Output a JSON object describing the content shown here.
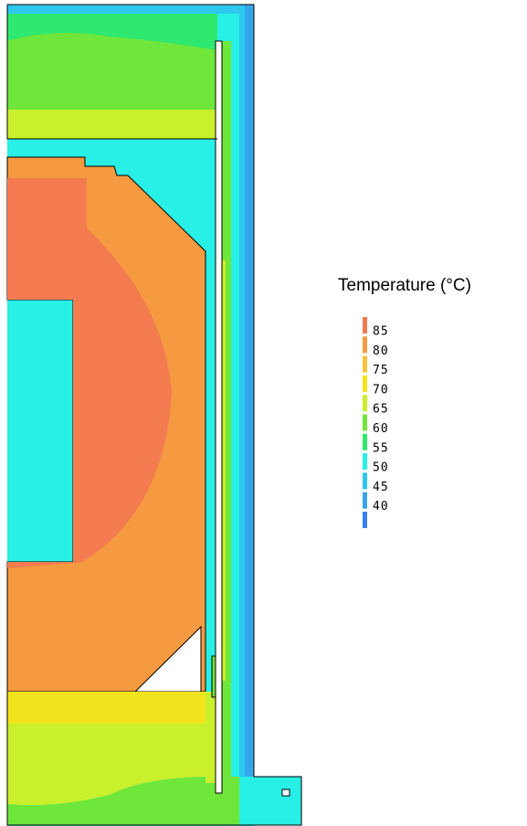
{
  "legend": {
    "title": "Temperature (°C)",
    "levels": [
      85,
      80,
      75,
      70,
      65,
      60,
      55,
      50,
      45,
      40,
      null
    ],
    "colors": [
      "#f47a50",
      "#f59a40",
      "#f6c43a",
      "#f2e41c",
      "#c9f02c",
      "#6fe63a",
      "#2fe870",
      "#28f0e6",
      "#2ec8ee",
      "#36a6ec",
      "#3a7ef0"
    ]
  }
}
